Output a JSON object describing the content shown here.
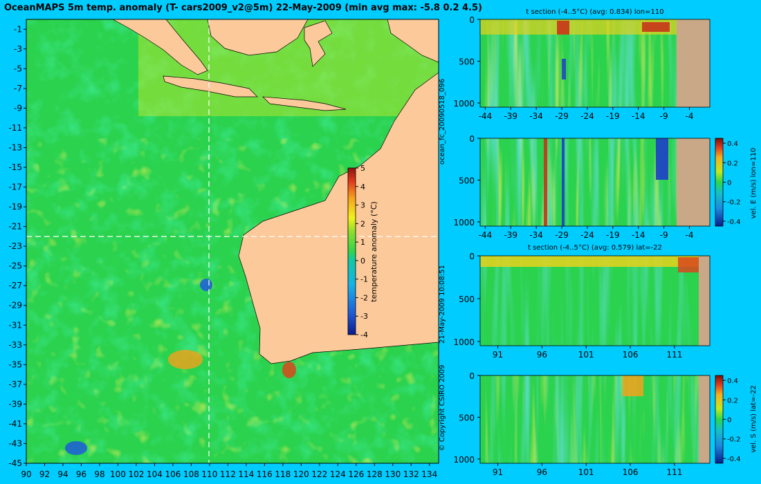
{
  "title": "OceanMAPS 5m temp. anomaly (T- cars2009_v2@5m) 22-May-2009 (min avg max: -5.8 0.2 4.5)",
  "side_labels": {
    "forecast": "ocean_fc_20090518_096",
    "timestamp": "21-May-2009 10:08:51",
    "copyright": "© Copyright CSIRO 2009"
  },
  "colors": {
    "background": "#00ccff",
    "land": "#fcc99a",
    "section_land": "#c8a887",
    "guide_line": "#ffffff"
  },
  "chart_data": [
    {
      "type": "heatmap",
      "name": "map",
      "title": "OceanMAPS 5m temp. anomaly (T- cars2009_v2@5m) 22-May-2009 (min avg max: -5.8 0.2 4.5)",
      "x_ticks": [
        90,
        92,
        94,
        96,
        98,
        100,
        102,
        104,
        106,
        108,
        110,
        112,
        114,
        116,
        118,
        120,
        122,
        124,
        126,
        128,
        130,
        132,
        134
      ],
      "y_ticks": [
        -1,
        -3,
        -5,
        -7,
        -9,
        -11,
        -13,
        -15,
        -17,
        -19,
        -21,
        -23,
        -25,
        -27,
        -29,
        -31,
        -33,
        -35,
        -37,
        -39,
        -41,
        -43,
        -45
      ],
      "xlim": [
        90,
        135
      ],
      "ylim": [
        -45,
        0
      ],
      "guide_lon": 110,
      "guide_lat": -22,
      "colorbar": {
        "label": "temperature anomaly (°C)",
        "ticks": [
          5,
          4,
          3,
          2,
          1,
          0,
          -1,
          -2,
          -3,
          -4
        ],
        "range": [
          -4,
          5
        ]
      }
    },
    {
      "type": "heatmap",
      "name": "section-t-lon",
      "title": "t section (-4..5°C) (avg: 0.834) lon=110",
      "x_ticks": [
        -44,
        -39,
        -34,
        -29,
        -24,
        -19,
        -14,
        -9,
        -4
      ],
      "y_ticks": [
        0,
        500,
        1000
      ],
      "xlim": [
        -45,
        0
      ],
      "ylim": [
        0,
        1050
      ]
    },
    {
      "type": "heatmap",
      "name": "section-u-lon",
      "title": "",
      "x_ticks": [
        -44,
        -39,
        -34,
        -29,
        -24,
        -19,
        -14,
        -9,
        -4
      ],
      "y_ticks": [
        0,
        500,
        1000
      ],
      "xlim": [
        -45,
        0
      ],
      "ylim": [
        0,
        1050
      ],
      "colorbar": {
        "label": "vel. E (m/s) lon=110",
        "ticks": [
          "0.4",
          "0.2",
          "0",
          "-0.2",
          "-0.4"
        ],
        "range": [
          -0.45,
          0.45
        ]
      }
    },
    {
      "type": "heatmap",
      "name": "section-t-lat",
      "title": "t section (-4..5°C) (avg: 0.579) lat=-22",
      "x_ticks": [
        91,
        96,
        101,
        106,
        111
      ],
      "y_ticks": [
        0,
        500,
        1000
      ],
      "xlim": [
        89,
        115
      ],
      "ylim": [
        0,
        1050
      ]
    },
    {
      "type": "heatmap",
      "name": "section-v-lat",
      "title": "",
      "x_ticks": [
        91,
        96,
        101,
        106,
        111
      ],
      "y_ticks": [
        0,
        500,
        1000
      ],
      "xlim": [
        89,
        115
      ],
      "ylim": [
        0,
        1050
      ],
      "colorbar": {
        "label": "vel. S (m/s) lat=-22",
        "ticks": [
          "0.4",
          "0.2",
          "0",
          "-0.2",
          "-0.4"
        ],
        "range": [
          -0.45,
          0.45
        ]
      }
    }
  ]
}
